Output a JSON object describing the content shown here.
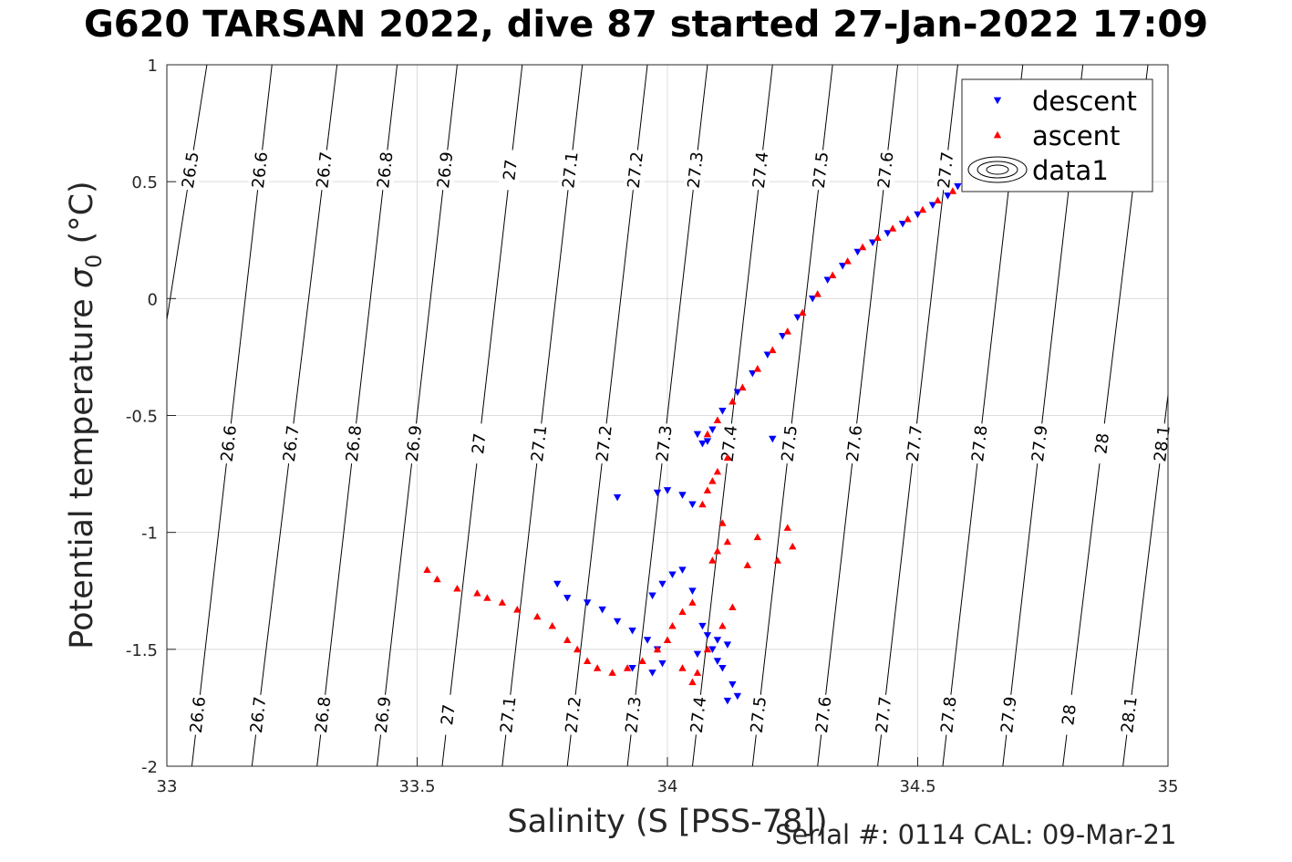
{
  "title": "G620 TARSAN 2022, dive 87 started 27-Jan-2022 17:09",
  "footer": "Serial #: 0114  CAL: 09-Mar-21",
  "colors": {
    "descent": "#0000ff",
    "ascent": "#ff0000",
    "grid": "#dcdcdc",
    "contour": "#000000"
  },
  "chart_data": {
    "type": "scatter",
    "title": "G620 TARSAN 2022, dive 87 started 27-Jan-2022 17:09",
    "xlabel": "Salinity (S [PSS-78])",
    "ylabel_main": "Potential temperature ",
    "ylabel_sigma": "σ",
    "ylabel_sub": "0",
    "ylabel_unit": " (°C)",
    "xlim": [
      33,
      35
    ],
    "ylim": [
      -2,
      1
    ],
    "xticks": [
      33,
      33.5,
      34,
      34.5,
      35
    ],
    "xtick_labels": [
      "33",
      "33.5",
      "34",
      "34.5",
      "35"
    ],
    "yticks": [
      -2,
      -1.5,
      -1,
      -0.5,
      0,
      0.5,
      1
    ],
    "ytick_labels": [
      "-2",
      "-1.5",
      "-1",
      "-0.5",
      "0",
      "0.5",
      "1"
    ],
    "grid": true,
    "legend_position": "top-right",
    "legend": [
      {
        "label": "descent",
        "marker": "triangle-down",
        "color": "#0000ff"
      },
      {
        "label": "ascent",
        "marker": "triangle-up",
        "color": "#ff0000"
      },
      {
        "label": "data1",
        "marker": "contour"
      }
    ],
    "contours": {
      "levels": [
        "26.5",
        "26.6",
        "26.7",
        "26.8",
        "26.9",
        "27",
        "27.1",
        "27.2",
        "27.3",
        "27.4",
        "27.5",
        "27.6",
        "27.7",
        "27.8",
        "27.9",
        "28",
        "28.1"
      ],
      "bottom_salinity": [
        32.86,
        33.05,
        33.17,
        33.3,
        33.42,
        33.55,
        33.67,
        33.8,
        33.92,
        34.05,
        34.17,
        34.3,
        34.42,
        34.55,
        34.67,
        34.79,
        34.91
      ],
      "top_salinity": [
        33.08,
        33.21,
        33.34,
        33.46,
        33.58,
        33.71,
        33.83,
        33.96,
        34.08,
        34.21,
        34.33,
        34.46,
        34.58,
        34.71,
        34.83,
        34.96,
        35.08
      ]
    },
    "descent": [
      [
        34.58,
        0.48
      ],
      [
        34.56,
        0.44
      ],
      [
        34.53,
        0.4
      ],
      [
        34.5,
        0.36
      ],
      [
        34.47,
        0.32
      ],
      [
        34.44,
        0.28
      ],
      [
        34.41,
        0.24
      ],
      [
        34.38,
        0.2
      ],
      [
        34.35,
        0.14
      ],
      [
        34.32,
        0.08
      ],
      [
        34.29,
        0.0
      ],
      [
        34.26,
        -0.08
      ],
      [
        34.23,
        -0.16
      ],
      [
        34.2,
        -0.24
      ],
      [
        34.17,
        -0.32
      ],
      [
        34.14,
        -0.4
      ],
      [
        34.11,
        -0.48
      ],
      [
        34.09,
        -0.56
      ],
      [
        34.08,
        -0.61
      ],
      [
        34.07,
        -0.62
      ],
      [
        34.06,
        -0.58
      ],
      [
        34.21,
        -0.6
      ],
      [
        34.03,
        -0.84
      ],
      [
        34.0,
        -0.82
      ],
      [
        33.98,
        -0.83
      ],
      [
        33.9,
        -0.85
      ],
      [
        34.05,
        -0.88
      ],
      [
        34.03,
        -1.16
      ],
      [
        34.01,
        -1.18
      ],
      [
        33.99,
        -1.22
      ],
      [
        33.97,
        -1.27
      ],
      [
        34.05,
        -1.25
      ],
      [
        34.07,
        -1.4
      ],
      [
        34.09,
        -1.5
      ],
      [
        34.11,
        -1.58
      ],
      [
        34.13,
        -1.65
      ],
      [
        34.14,
        -1.7
      ],
      [
        34.12,
        -1.72
      ],
      [
        33.78,
        -1.22
      ],
      [
        33.8,
        -1.28
      ],
      [
        33.84,
        -1.3
      ],
      [
        33.87,
        -1.33
      ],
      [
        33.9,
        -1.38
      ],
      [
        33.93,
        -1.42
      ],
      [
        33.96,
        -1.46
      ],
      [
        33.98,
        -1.5
      ],
      [
        33.99,
        -1.56
      ],
      [
        33.97,
        -1.6
      ],
      [
        33.93,
        -1.58
      ],
      [
        34.1,
        -1.46
      ],
      [
        34.08,
        -1.44
      ],
      [
        34.06,
        -1.52
      ],
      [
        34.1,
        -1.55
      ],
      [
        34.12,
        -1.48
      ]
    ],
    "ascent": [
      [
        34.57,
        0.46
      ],
      [
        34.54,
        0.42
      ],
      [
        34.51,
        0.38
      ],
      [
        34.48,
        0.34
      ],
      [
        34.45,
        0.3
      ],
      [
        34.42,
        0.26
      ],
      [
        34.39,
        0.22
      ],
      [
        34.36,
        0.16
      ],
      [
        34.33,
        0.1
      ],
      [
        34.3,
        0.02
      ],
      [
        34.27,
        -0.06
      ],
      [
        34.24,
        -0.14
      ],
      [
        34.21,
        -0.22
      ],
      [
        34.18,
        -0.3
      ],
      [
        34.15,
        -0.38
      ],
      [
        34.13,
        -0.44
      ],
      [
        34.1,
        -0.52
      ],
      [
        34.08,
        -0.58
      ],
      [
        34.12,
        -0.68
      ],
      [
        34.1,
        -0.74
      ],
      [
        34.09,
        -0.78
      ],
      [
        34.08,
        -0.82
      ],
      [
        34.07,
        -0.88
      ],
      [
        34.11,
        -0.96
      ],
      [
        34.12,
        -1.04
      ],
      [
        34.1,
        -1.08
      ],
      [
        34.09,
        -1.12
      ],
      [
        34.16,
        -1.14
      ],
      [
        34.22,
        -1.12
      ],
      [
        34.25,
        -1.06
      ],
      [
        34.18,
        -1.02
      ],
      [
        34.24,
        -0.98
      ],
      [
        34.05,
        -1.3
      ],
      [
        34.03,
        -1.34
      ],
      [
        34.01,
        -1.4
      ],
      [
        34.0,
        -1.46
      ],
      [
        33.98,
        -1.5
      ],
      [
        33.95,
        -1.55
      ],
      [
        33.92,
        -1.58
      ],
      [
        33.89,
        -1.6
      ],
      [
        33.86,
        -1.58
      ],
      [
        33.84,
        -1.55
      ],
      [
        33.82,
        -1.5
      ],
      [
        33.8,
        -1.46
      ],
      [
        33.77,
        -1.4
      ],
      [
        33.74,
        -1.36
      ],
      [
        33.7,
        -1.33
      ],
      [
        33.67,
        -1.3
      ],
      [
        33.64,
        -1.28
      ],
      [
        33.62,
        -1.26
      ],
      [
        33.58,
        -1.24
      ],
      [
        33.54,
        -1.2
      ],
      [
        33.52,
        -1.16
      ],
      [
        34.06,
        -1.6
      ],
      [
        34.05,
        -1.64
      ],
      [
        34.03,
        -1.58
      ],
      [
        34.08,
        -1.5
      ],
      [
        34.11,
        -1.4
      ],
      [
        34.13,
        -1.32
      ]
    ]
  }
}
